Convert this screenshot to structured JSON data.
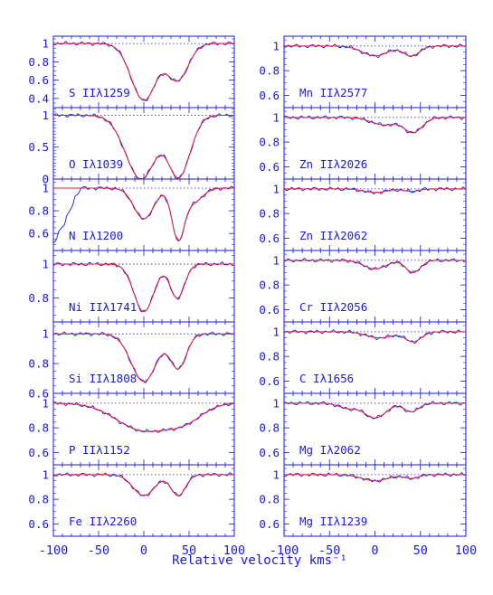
{
  "chart_data": {
    "type": "line",
    "xlabel": "Relative velocity kms⁻¹",
    "xlim": [
      -100,
      100
    ],
    "x_ticks": [
      "-100",
      "-50",
      "0",
      "50",
      "100"
    ],
    "colors": {
      "axes": "#1a1adf",
      "data": "#1a1adf",
      "fit": "#e0203a",
      "continuum": "#1a1adf"
    },
    "columns": [
      [
        {
          "label": "S IIλ1259",
          "ylim": [
            0.3,
            1.08
          ],
          "yticks": [
            "0.4",
            "0.6",
            "0.8",
            "1"
          ],
          "components": [
            {
              "v": 0,
              "depth": 0.62,
              "width": 14
            },
            {
              "v": 37,
              "depth": 0.4,
              "width": 12
            }
          ],
          "wing": null
        },
        {
          "label": "O Iλ1039",
          "ylim": [
            0,
            1.12
          ],
          "yticks": [
            "0",
            "0.5",
            "1"
          ],
          "components": [
            {
              "v": -3,
              "depth": 1.0,
              "width": 17
            },
            {
              "v": 38,
              "depth": 0.98,
              "width": 13
            }
          ],
          "wing": null
        },
        {
          "label": "N Iλ1200",
          "ylim": [
            0.45,
            1.08
          ],
          "yticks": [
            "0.6",
            "0.8",
            "1"
          ],
          "components": [
            {
              "v": 0,
              "depth": 0.27,
              "width": 11
            },
            {
              "v": 38,
              "depth": 0.45,
              "width": 7
            },
            {
              "v": 55,
              "depth": 0.12,
              "width": 10
            }
          ],
          "wing": {
            "from": -100,
            "to": -70,
            "level": 0.5
          }
        },
        {
          "label": "Ni IIλ1741",
          "ylim": [
            0.66,
            1.08
          ],
          "yticks": [
            "0.8",
            "1"
          ],
          "components": [
            {
              "v": 0,
              "depth": 0.28,
              "width": 11
            },
            {
              "v": 37,
              "depth": 0.2,
              "width": 8
            }
          ],
          "wing": null
        },
        {
          "label": "Si IIλ1808",
          "ylim": [
            0.6,
            1.08
          ],
          "yticks": [
            "0.6",
            "0.8",
            "1"
          ],
          "components": [
            {
              "v": 0,
              "depth": 0.32,
              "width": 14
            },
            {
              "v": 38,
              "depth": 0.23,
              "width": 9
            }
          ],
          "wing": null
        },
        {
          "label": "P IIλ1152",
          "ylim": [
            0.5,
            1.08
          ],
          "yticks": [
            "0.6",
            "0.8",
            "1"
          ],
          "components": [
            {
              "v": 0,
              "depth": 0.22,
              "width": 30
            },
            {
              "v": 45,
              "depth": 0.12,
              "width": 20
            }
          ],
          "wing": null
        },
        {
          "label": "Fe IIλ2260",
          "ylim": [
            0.5,
            1.08
          ],
          "yticks": [
            "0.6",
            "0.8",
            "1"
          ],
          "components": [
            {
              "v": 0,
              "depth": 0.17,
              "width": 12
            },
            {
              "v": 38,
              "depth": 0.17,
              "width": 8
            }
          ],
          "wing": null
        }
      ],
      [
        {
          "label": "Mn IIλ2577",
          "ylim": [
            0.5,
            1.08
          ],
          "yticks": [
            "0.6",
            "0.8",
            "1"
          ],
          "components": [
            {
              "v": 0,
              "depth": 0.08,
              "width": 14
            },
            {
              "v": 40,
              "depth": 0.08,
              "width": 9
            }
          ],
          "wing": null
        },
        {
          "label": "Zn IIλ2026",
          "ylim": [
            0.5,
            1.08
          ],
          "yticks": [
            "0.6",
            "0.8",
            "1"
          ],
          "components": [
            {
              "v": 10,
              "depth": 0.06,
              "width": 14
            },
            {
              "v": 42,
              "depth": 0.12,
              "width": 10
            }
          ],
          "wing": null
        },
        {
          "label": "Zn IIλ2062",
          "ylim": [
            0.5,
            1.08
          ],
          "yticks": [
            "0.6",
            "0.8",
            "1"
          ],
          "components": [
            {
              "v": 0,
              "depth": 0.03,
              "width": 12
            },
            {
              "v": 40,
              "depth": 0.02,
              "width": 8
            }
          ],
          "wing": null
        },
        {
          "label": "Cr IIλ2056",
          "ylim": [
            0.5,
            1.08
          ],
          "yticks": [
            "0.6",
            "0.8",
            "1"
          ],
          "components": [
            {
              "v": 0,
              "depth": 0.07,
              "width": 12
            },
            {
              "v": 42,
              "depth": 0.1,
              "width": 8
            }
          ],
          "wing": null
        },
        {
          "label": "C Iλ1656",
          "ylim": [
            0.5,
            1.08
          ],
          "yticks": [
            "0.6",
            "0.8",
            "1"
          ],
          "components": [
            {
              "v": 5,
              "depth": 0.05,
              "width": 14
            },
            {
              "v": 42,
              "depth": 0.08,
              "width": 9
            }
          ],
          "wing": null
        },
        {
          "label": "Mg Iλ2062",
          "ylim": [
            0.5,
            1.08
          ],
          "yticks": [
            "0.6",
            "0.8",
            "1"
          ],
          "components": [
            {
              "v": 0,
              "depth": 0.12,
              "width": 12
            },
            {
              "v": 40,
              "depth": 0.07,
              "width": 8
            },
            {
              "v": -30,
              "depth": 0.04,
              "width": 10
            }
          ],
          "wing": null
        },
        {
          "label": "Mg IIλ1239",
          "ylim": [
            0.5,
            1.08
          ],
          "yticks": [
            "0.6",
            "0.8",
            "1"
          ],
          "components": [
            {
              "v": 0,
              "depth": 0.05,
              "width": 14
            },
            {
              "v": 40,
              "depth": 0.03,
              "width": 8
            }
          ],
          "wing": null
        }
      ]
    ]
  }
}
